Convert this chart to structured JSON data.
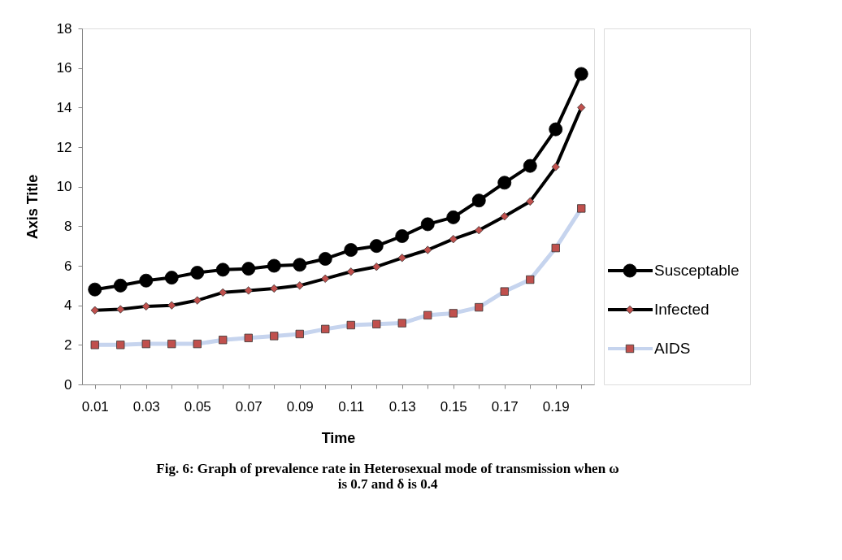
{
  "chart_data": {
    "type": "line",
    "xlabel": "Time",
    "ylabel": "Axis Title",
    "annotations": [
      "Fig. 6: Graph of prevalence rate in Heterosexual mode of transmission when ω is 0.7 and δ is 0.4"
    ],
    "categories": [
      "0.01",
      null,
      "0.03",
      null,
      "0.05",
      null,
      "0.07",
      null,
      "0.09",
      null,
      "0.11",
      null,
      "0.13",
      null,
      "0.15",
      null,
      "0.17",
      null,
      "0.19",
      null
    ],
    "ylim": [
      0,
      18
    ],
    "yticks": [
      0,
      2,
      4,
      6,
      8,
      10,
      12,
      14,
      16,
      18
    ],
    "grid": false,
    "legend": "right",
    "series": [
      {
        "name": "Susceptable",
        "color": "#000000",
        "marker": "circle",
        "values": [
          4.8,
          5.0,
          5.25,
          5.4,
          5.65,
          5.8,
          5.85,
          6.0,
          6.05,
          6.35,
          6.8,
          7.0,
          7.5,
          8.1,
          8.45,
          9.3,
          10.2,
          11.05,
          12.9,
          15.7
        ]
      },
      {
        "name": "Infected",
        "color": "#000000",
        "marker": "diamond",
        "values": [
          3.75,
          3.8,
          3.95,
          4.0,
          4.25,
          4.65,
          4.75,
          4.85,
          5.0,
          5.35,
          5.7,
          5.95,
          6.4,
          6.8,
          7.35,
          7.8,
          8.5,
          9.25,
          11.0,
          14.0
        ]
      },
      {
        "name": "AIDS",
        "color": "#c6d4ee",
        "marker": "square",
        "values": [
          2.0,
          2.0,
          2.05,
          2.05,
          2.05,
          2.25,
          2.35,
          2.45,
          2.55,
          2.8,
          3.0,
          3.05,
          3.1,
          3.5,
          3.6,
          3.9,
          4.7,
          5.3,
          6.9,
          8.9
        ]
      }
    ]
  }
}
